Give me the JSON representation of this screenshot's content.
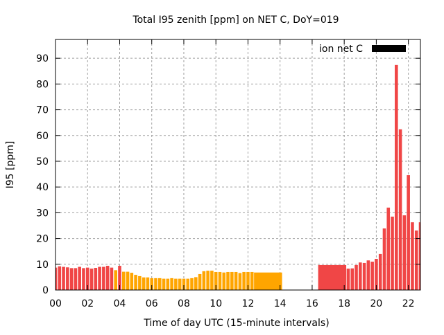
{
  "chart_data": {
    "type": "bar",
    "title": "Total I95 zenith [ppm] on NET C, DoY=019",
    "xlabel": "Time of day UTC (15-minute intervals)",
    "ylabel": "I95 [ppm]",
    "xlim": [
      0,
      22.75
    ],
    "ylim": [
      0,
      97.3
    ],
    "xticks": [
      "00",
      "02",
      "04",
      "06",
      "08",
      "10",
      "12",
      "14",
      "16",
      "18",
      "20",
      "22"
    ],
    "xtick_values": [
      0,
      2,
      4,
      6,
      8,
      10,
      12,
      14,
      16,
      18,
      20,
      22
    ],
    "yticks": [
      "0",
      "10",
      "20",
      "30",
      "40",
      "50",
      "60",
      "70",
      "80",
      "90"
    ],
    "ytick_values": [
      0,
      10,
      20,
      30,
      40,
      50,
      60,
      70,
      80,
      90
    ],
    "grid": true,
    "legend": {
      "label": "ion net C",
      "color": "#000000",
      "placement": "top-right"
    },
    "colors": {
      "red": "#f04646",
      "orange": "#ffa500"
    },
    "bars": [
      {
        "t": 0.0,
        "v": 8.7,
        "c": "red"
      },
      {
        "t": 0.25,
        "v": 9.2,
        "c": "red"
      },
      {
        "t": 0.5,
        "v": 9.0,
        "c": "red"
      },
      {
        "t": 0.75,
        "v": 8.8,
        "c": "red"
      },
      {
        "t": 1.0,
        "v": 8.5,
        "c": "red"
      },
      {
        "t": 1.25,
        "v": 8.5,
        "c": "red"
      },
      {
        "t": 1.5,
        "v": 9.0,
        "c": "red"
      },
      {
        "t": 1.75,
        "v": 8.5,
        "c": "red"
      },
      {
        "t": 2.0,
        "v": 8.7,
        "c": "red"
      },
      {
        "t": 2.25,
        "v": 8.3,
        "c": "red"
      },
      {
        "t": 2.5,
        "v": 8.6,
        "c": "red"
      },
      {
        "t": 2.75,
        "v": 9.0,
        "c": "red"
      },
      {
        "t": 3.0,
        "v": 9.0,
        "c": "red"
      },
      {
        "t": 3.25,
        "v": 9.4,
        "c": "red"
      },
      {
        "t": 3.5,
        "v": 8.7,
        "c": "red"
      },
      {
        "t": 3.75,
        "v": 7.7,
        "c": "orange"
      },
      {
        "t": 4.0,
        "v": 9.4,
        "c": "red"
      },
      {
        "t": 4.25,
        "v": 7.1,
        "c": "orange"
      },
      {
        "t": 4.5,
        "v": 7.1,
        "c": "orange"
      },
      {
        "t": 4.75,
        "v": 6.7,
        "c": "orange"
      },
      {
        "t": 5.0,
        "v": 5.9,
        "c": "orange"
      },
      {
        "t": 5.25,
        "v": 5.4,
        "c": "orange"
      },
      {
        "t": 5.5,
        "v": 4.9,
        "c": "orange"
      },
      {
        "t": 5.75,
        "v": 4.9,
        "c": "orange"
      },
      {
        "t": 6.0,
        "v": 4.6,
        "c": "orange"
      },
      {
        "t": 6.25,
        "v": 4.6,
        "c": "orange"
      },
      {
        "t": 6.5,
        "v": 4.6,
        "c": "orange"
      },
      {
        "t": 6.75,
        "v": 4.4,
        "c": "orange"
      },
      {
        "t": 7.0,
        "v": 4.4,
        "c": "orange"
      },
      {
        "t": 7.25,
        "v": 4.6,
        "c": "orange"
      },
      {
        "t": 7.5,
        "v": 4.4,
        "c": "orange"
      },
      {
        "t": 7.75,
        "v": 4.4,
        "c": "orange"
      },
      {
        "t": 8.0,
        "v": 4.4,
        "c": "orange"
      },
      {
        "t": 8.25,
        "v": 4.4,
        "c": "orange"
      },
      {
        "t": 8.5,
        "v": 4.6,
        "c": "orange"
      },
      {
        "t": 8.75,
        "v": 5.0,
        "c": "orange"
      },
      {
        "t": 9.0,
        "v": 6.2,
        "c": "orange"
      },
      {
        "t": 9.25,
        "v": 7.3,
        "c": "orange"
      },
      {
        "t": 9.5,
        "v": 7.5,
        "c": "orange"
      },
      {
        "t": 9.75,
        "v": 7.5,
        "c": "orange"
      },
      {
        "t": 10.0,
        "v": 7.0,
        "c": "orange"
      },
      {
        "t": 10.25,
        "v": 7.0,
        "c": "orange"
      },
      {
        "t": 10.5,
        "v": 6.8,
        "c": "orange"
      },
      {
        "t": 10.75,
        "v": 7.0,
        "c": "orange"
      },
      {
        "t": 11.0,
        "v": 7.0,
        "c": "orange"
      },
      {
        "t": 11.25,
        "v": 7.0,
        "c": "orange"
      },
      {
        "t": 11.5,
        "v": 6.6,
        "c": "orange"
      },
      {
        "t": 11.75,
        "v": 7.0,
        "c": "orange"
      },
      {
        "t": 12.0,
        "v": 7.0,
        "c": "orange"
      },
      {
        "t": 12.25,
        "v": 7.0,
        "c": "orange"
      },
      {
        "t": 12.5,
        "v": 6.8,
        "c": "orange",
        "span": 1.75
      },
      {
        "t": 16.5,
        "v": 9.7,
        "c": "red",
        "span": 1.75
      },
      {
        "t": 18.25,
        "v": 8.3,
        "c": "red"
      },
      {
        "t": 18.5,
        "v": 8.4,
        "c": "red"
      },
      {
        "t": 18.75,
        "v": 9.7,
        "c": "red"
      },
      {
        "t": 19.0,
        "v": 10.7,
        "c": "red"
      },
      {
        "t": 19.25,
        "v": 10.5,
        "c": "red"
      },
      {
        "t": 19.5,
        "v": 11.5,
        "c": "red"
      },
      {
        "t": 19.75,
        "v": 11.0,
        "c": "red"
      },
      {
        "t": 20.0,
        "v": 12.1,
        "c": "red"
      },
      {
        "t": 20.25,
        "v": 14.0,
        "c": "red"
      },
      {
        "t": 20.5,
        "v": 23.9,
        "c": "red"
      },
      {
        "t": 20.75,
        "v": 32.0,
        "c": "red"
      },
      {
        "t": 21.0,
        "v": 28.5,
        "c": "red"
      },
      {
        "t": 21.25,
        "v": 87.4,
        "c": "red"
      },
      {
        "t": 21.5,
        "v": 62.4,
        "c": "red"
      },
      {
        "t": 21.75,
        "v": 29.0,
        "c": "red"
      },
      {
        "t": 22.0,
        "v": 44.6,
        "c": "red"
      },
      {
        "t": 22.25,
        "v": 26.3,
        "c": "red"
      },
      {
        "t": 22.5,
        "v": 23.1,
        "c": "red"
      },
      {
        "t": 22.75,
        "v": 26.3,
        "c": "red"
      }
    ]
  }
}
